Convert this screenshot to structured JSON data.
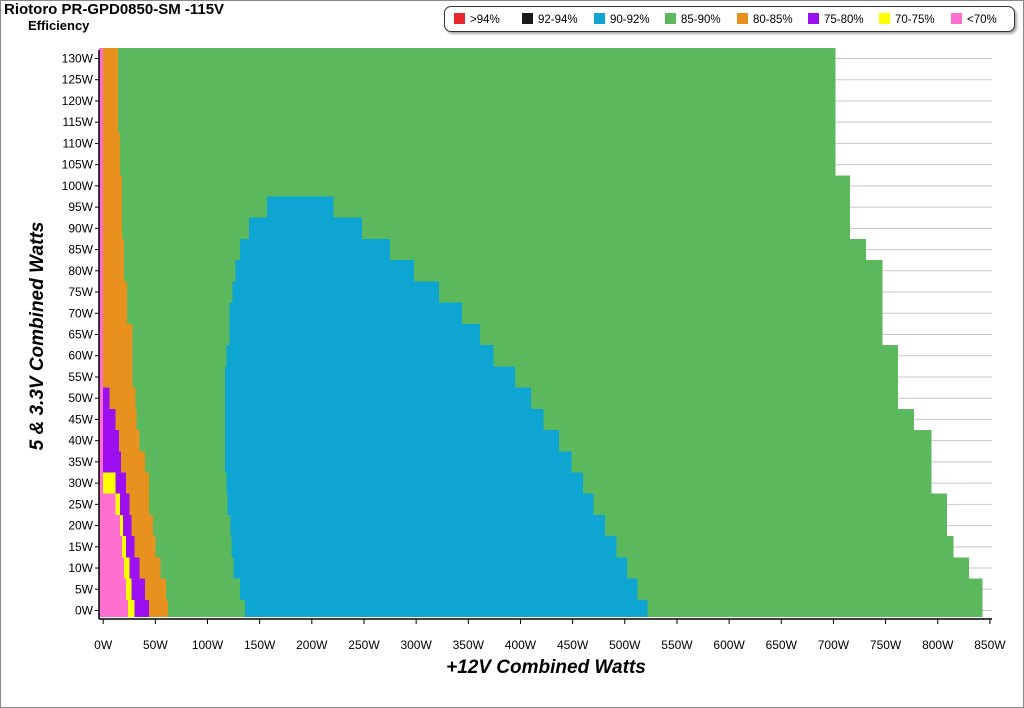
{
  "header": {
    "title": "Riotoro PR-GPD0850-SM -115V",
    "subtitle": "Efficiency"
  },
  "chart_data": {
    "type": "heatmap",
    "title": "Riotoro PR-GPD0850-SM -115V",
    "subtitle": "Efficiency",
    "xlabel": "+12V Combined Watts",
    "ylabel": "5 & 3.3V Combined Watts",
    "xlim": [
      -4,
      852
    ],
    "ylim": [
      -2,
      132
    ],
    "x_ticks": [
      0,
      50,
      100,
      150,
      200,
      250,
      300,
      350,
      400,
      450,
      500,
      550,
      600,
      650,
      700,
      750,
      800,
      850
    ],
    "x_tick_labels": [
      "0W",
      "50W",
      "100W",
      "150W",
      "200W",
      "250W",
      "300W",
      "350W",
      "400W",
      "450W",
      "500W",
      "550W",
      "600W",
      "650W",
      "700W",
      "750W",
      "800W",
      "850W"
    ],
    "y_ticks": [
      0,
      5,
      10,
      15,
      20,
      25,
      30,
      35,
      40,
      45,
      50,
      55,
      60,
      65,
      70,
      75,
      80,
      85,
      90,
      95,
      100,
      105,
      110,
      115,
      120,
      125,
      130
    ],
    "y_tick_labels": [
      "0W",
      "5W",
      "10W",
      "15W",
      "20W",
      "25W",
      "30W",
      "35W",
      "40W",
      "45W",
      "50W",
      "55W",
      "60W",
      "65W",
      "70W",
      "75W",
      "80W",
      "85W",
      "90W",
      "95W",
      "100W",
      "105W",
      "110W",
      "115W",
      "120W",
      "125W",
      "130W"
    ],
    "grid": "horizontal",
    "legend": [
      {
        "label": ">94%",
        "color": "#e8262b"
      },
      {
        "label": "92-94%",
        "color": "#1a1a1a"
      },
      {
        "label": "90-92%",
        "color": "#0ea5d2"
      },
      {
        "label": "85-90%",
        "color": "#5cb85c"
      },
      {
        "label": "80-85%",
        "color": "#e8911f"
      },
      {
        "label": "75-80%",
        "color": "#9b0ff0"
      },
      {
        "label": "70-75%",
        "color": "#ffff00"
      },
      {
        "label": "<70%",
        "color": "#ff6fcf"
      }
    ],
    "legend_position": "top-right",
    "band_edges": {
      "y": [
        0,
        5,
        10,
        15,
        20,
        25,
        30,
        35,
        40,
        45,
        50,
        55,
        60,
        65,
        70,
        75,
        80,
        85,
        90,
        95,
        100,
        105,
        110,
        115,
        120,
        125,
        130
      ],
      "pink_end": [
        24,
        22,
        20,
        18,
        16,
        12,
        0,
        0,
        0,
        0,
        0,
        0,
        0,
        0,
        0,
        0,
        0,
        0,
        0,
        0,
        0,
        0,
        0,
        0,
        0,
        0,
        0
      ],
      "yellow_end": [
        30,
        27,
        25,
        22,
        19,
        16,
        12,
        0,
        0,
        0,
        0,
        0,
        0,
        0,
        0,
        0,
        0,
        0,
        0,
        0,
        0,
        0,
        0,
        0,
        0,
        0,
        0
      ],
      "purple_end": [
        44,
        40,
        35,
        30,
        27,
        25,
        22,
        17,
        15,
        12,
        6,
        0,
        0,
        0,
        0,
        0,
        0,
        0,
        0,
        0,
        0,
        0,
        0,
        0,
        0,
        0,
        0
      ],
      "orange_end": [
        62,
        60,
        55,
        50,
        48,
        44,
        44,
        40,
        35,
        32,
        31,
        28,
        28,
        28,
        23,
        23,
        20,
        20,
        18,
        18,
        18,
        16,
        16,
        14,
        14,
        14,
        14
      ],
      "blue_start": [
        136,
        131,
        125,
        123,
        122,
        119,
        118,
        117,
        117,
        117,
        117,
        117,
        118,
        121,
        121,
        124,
        127,
        131,
        140,
        157,
        null,
        null,
        null,
        null,
        null,
        null,
        null
      ],
      "blue_end": [
        522,
        512,
        502,
        492,
        481,
        470,
        460,
        449,
        437,
        422,
        410,
        395,
        374,
        361,
        344,
        322,
        298,
        275,
        248,
        221,
        null,
        null,
        null,
        null,
        null,
        null,
        null
      ],
      "green_end": [
        843,
        843,
        830,
        815,
        809,
        809,
        794,
        794,
        794,
        777,
        762,
        762,
        762,
        747,
        747,
        747,
        747,
        731,
        716,
        716,
        716,
        702,
        702,
        702,
        702,
        702,
        702
      ]
    }
  }
}
